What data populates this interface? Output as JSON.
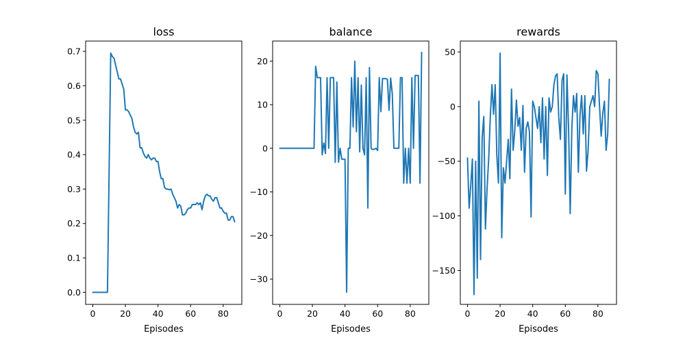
{
  "colors": {
    "series": "#1f77b4",
    "axes": "#000000",
    "background": "#ffffff"
  },
  "chart_data": [
    {
      "type": "line",
      "title": "loss",
      "xlabel": "Episodes",
      "ylabel": "",
      "grid": false,
      "xlim": [
        -4.4,
        91.4
      ],
      "ylim": [
        -0.035,
        0.73
      ],
      "xticks": [
        0,
        20,
        40,
        60,
        80
      ],
      "yticks": [
        0.0,
        0.1,
        0.2,
        0.3,
        0.4,
        0.5,
        0.6,
        0.7
      ],
      "ytick_labels": [
        "0.0",
        "0.1",
        "0.2",
        "0.3",
        "0.4",
        "0.5",
        "0.6",
        "0.7"
      ],
      "series": [
        {
          "x": [
            0,
            1,
            2,
            3,
            4,
            5,
            6,
            7,
            8,
            9,
            10,
            11,
            12,
            13,
            14,
            15,
            16,
            17,
            18,
            19,
            20,
            21,
            22,
            23,
            24,
            25,
            26,
            27,
            28,
            29,
            30,
            31,
            32,
            33,
            34,
            35,
            36,
            37,
            38,
            39,
            40,
            41,
            42,
            43,
            44,
            45,
            46,
            47,
            48,
            49,
            50,
            51,
            52,
            53,
            54,
            55,
            56,
            57,
            58,
            59,
            60,
            61,
            62,
            63,
            64,
            65,
            66,
            67,
            68,
            69,
            70,
            71,
            72,
            73,
            74,
            75,
            76,
            77,
            78,
            79,
            80,
            81,
            82,
            83,
            84,
            85,
            86,
            87
          ],
          "y": [
            0,
            0,
            0,
            0,
            0,
            0,
            0,
            0,
            0,
            0,
            0.35,
            0.695,
            0.685,
            0.68,
            0.66,
            0.64,
            0.62,
            0.62,
            0.605,
            0.59,
            0.53,
            0.53,
            0.525,
            0.515,
            0.505,
            0.48,
            0.465,
            0.46,
            0.465,
            0.42,
            0.42,
            0.405,
            0.395,
            0.39,
            0.4,
            0.39,
            0.385,
            0.39,
            0.39,
            0.38,
            0.38,
            0.35,
            0.33,
            0.33,
            0.305,
            0.3,
            0.3,
            0.298,
            0.3,
            0.285,
            0.275,
            0.265,
            0.245,
            0.255,
            0.25,
            0.225,
            0.225,
            0.23,
            0.24,
            0.245,
            0.245,
            0.255,
            0.255,
            0.255,
            0.26,
            0.255,
            0.26,
            0.24,
            0.265,
            0.28,
            0.285,
            0.28,
            0.28,
            0.27,
            0.265,
            0.275,
            0.275,
            0.26,
            0.245,
            0.245,
            0.235,
            0.23,
            0.23,
            0.21,
            0.21,
            0.22,
            0.22,
            0.205
          ]
        }
      ]
    },
    {
      "type": "line",
      "title": "balance",
      "xlabel": "Episodes",
      "ylabel": "",
      "grid": false,
      "xlim": [
        -4.4,
        91.4
      ],
      "ylim": [
        -35.8,
        24.6
      ],
      "xticks": [
        0,
        20,
        40,
        60,
        80
      ],
      "yticks": [
        -30,
        -20,
        -10,
        0,
        10,
        20
      ],
      "ytick_labels": [
        "−30",
        "−20",
        "−10",
        "0",
        "10",
        "20"
      ],
      "series": [
        {
          "x": [
            0,
            1,
            2,
            3,
            4,
            5,
            6,
            7,
            8,
            9,
            10,
            11,
            12,
            13,
            14,
            15,
            16,
            17,
            18,
            19,
            20,
            21,
            22,
            23,
            24,
            25,
            26,
            27,
            28,
            29,
            30,
            31,
            32,
            33,
            34,
            35,
            36,
            37,
            38,
            39,
            40,
            41,
            42,
            43,
            44,
            45,
            46,
            47,
            48,
            49,
            50,
            51,
            52,
            53,
            54,
            55,
            56,
            57,
            58,
            59,
            60,
            61,
            62,
            63,
            64,
            65,
            66,
            67,
            68,
            69,
            70,
            71,
            72,
            73,
            74,
            75,
            76,
            77,
            78,
            79,
            80,
            81,
            82,
            83,
            84,
            85,
            86,
            87
          ],
          "y": [
            0,
            0,
            0,
            0,
            0,
            0,
            0,
            0,
            0,
            0,
            0,
            0,
            0,
            0,
            0,
            0,
            0,
            0,
            0,
            0,
            0,
            0,
            18.8,
            16.2,
            16.2,
            16.2,
            -1.5,
            1.2,
            -1.2,
            16.2,
            0,
            16.2,
            16.2,
            16.2,
            -3.2,
            15.2,
            -3.2,
            0,
            -2.5,
            -2.5,
            -2.5,
            -33,
            0,
            0,
            16.2,
            4.9,
            20,
            3.8,
            16.2,
            -0.8,
            14.5,
            0,
            -1.5,
            16.2,
            -13.7,
            18.5,
            0,
            -0.3,
            -0.2,
            0,
            -0.5,
            16.2,
            8.4,
            16,
            16,
            16,
            15.8,
            8.7,
            16.1,
            12.5,
            0,
            0,
            0,
            0,
            16.2,
            16.2,
            -8,
            0,
            -8,
            0,
            -8,
            16.2,
            0,
            16.7,
            16.7,
            16.7,
            -8,
            22
          ]
        }
      ]
    },
    {
      "type": "line",
      "title": "rewards",
      "xlabel": "Episodes",
      "ylabel": "",
      "grid": false,
      "xlim": [
        -4.4,
        91.4
      ],
      "ylim": [
        -181,
        60
      ],
      "xticks": [
        0,
        20,
        40,
        60,
        80
      ],
      "yticks": [
        -150,
        -100,
        -50,
        0,
        50
      ],
      "ytick_labels": [
        "−150",
        "−100",
        "−50",
        "0",
        "50"
      ],
      "series": [
        {
          "x": [
            0,
            1,
            2,
            3,
            4,
            5,
            6,
            7,
            8,
            9,
            10,
            11,
            12,
            13,
            14,
            15,
            16,
            17,
            18,
            19,
            20,
            21,
            22,
            23,
            24,
            25,
            26,
            27,
            28,
            29,
            30,
            31,
            32,
            33,
            34,
            35,
            36,
            37,
            38,
            39,
            40,
            41,
            42,
            43,
            44,
            45,
            46,
            47,
            48,
            49,
            50,
            51,
            52,
            53,
            54,
            55,
            56,
            57,
            58,
            59,
            60,
            61,
            62,
            63,
            64,
            65,
            66,
            67,
            68,
            69,
            70,
            71,
            72,
            73,
            74,
            75,
            76,
            77,
            78,
            79,
            80,
            81,
            82,
            83,
            84,
            85,
            86,
            87
          ],
          "y": [
            -47,
            -93,
            -72,
            -48,
            -172,
            -50,
            -157,
            5,
            -140,
            -28,
            -9,
            -112,
            -75,
            -48,
            -9,
            20,
            -7,
            20,
            -45,
            -70,
            49,
            -120,
            -56,
            -70,
            -50,
            -30,
            -66,
            16,
            -40,
            -22,
            6,
            -18,
            -10,
            -40,
            1,
            -60,
            -20,
            -14,
            -23,
            -101,
            5,
            0,
            -10,
            -20,
            0,
            -33,
            8,
            -48,
            0,
            -63,
            8,
            -5,
            0,
            20,
            28,
            30,
            -10,
            -30,
            24,
            30,
            -80,
            29,
            -20,
            -98,
            -20,
            10,
            -5,
            12,
            -60,
            -8,
            10,
            -25,
            10,
            -59,
            -40,
            0,
            5,
            10,
            0,
            33,
            30,
            0,
            -27,
            -6,
            5,
            -40,
            -25,
            25
          ]
        }
      ]
    }
  ]
}
